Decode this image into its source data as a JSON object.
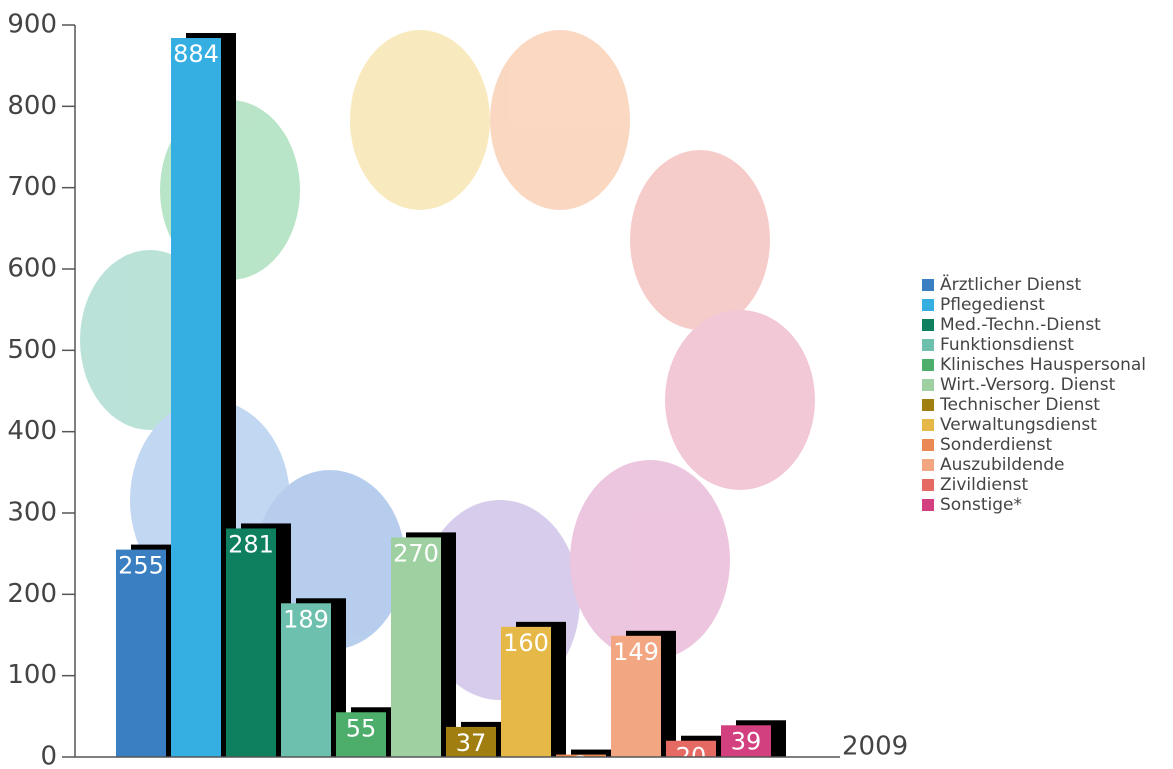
{
  "chart_data": {
    "type": "bar",
    "categories": [
      "2009"
    ],
    "series": [
      {
        "name": "Ärztlicher Dienst",
        "color": "#3a7fc1",
        "values": [
          255
        ]
      },
      {
        "name": "Pflegedienst",
        "color": "#35aee2",
        "values": [
          884
        ]
      },
      {
        "name": "Med.-Techn.-Dienst",
        "color": "#0e8060",
        "values": [
          281
        ]
      },
      {
        "name": "Funktionsdienst",
        "color": "#6cc0ad",
        "values": [
          189
        ]
      },
      {
        "name": "Klinisches Hauspersonal",
        "color": "#4cae6a",
        "values": [
          55
        ]
      },
      {
        "name": "Wirt.-Versorg. Dienst",
        "color": "#9fd0a2",
        "values": [
          270
        ]
      },
      {
        "name": "Technischer Dienst",
        "color": "#a07f10",
        "values": [
          37
        ]
      },
      {
        "name": "Verwaltungsdienst",
        "color": "#e6b847",
        "values": [
          160
        ]
      },
      {
        "name": "Sonderdienst",
        "color": "#e98a55",
        "values": [
          3
        ]
      },
      {
        "name": "Auszubildende",
        "color": "#f2a782",
        "values": [
          149
        ]
      },
      {
        "name": "Zivildienst",
        "color": "#e56a63",
        "values": [
          20
        ]
      },
      {
        "name": "Sonstige*",
        "color": "#d2407f",
        "values": [
          39
        ]
      }
    ],
    "ylim": [
      0,
      900
    ],
    "yticks": [
      0,
      100,
      200,
      300,
      400,
      500,
      600,
      700,
      800,
      900
    ],
    "legend": "right"
  }
}
